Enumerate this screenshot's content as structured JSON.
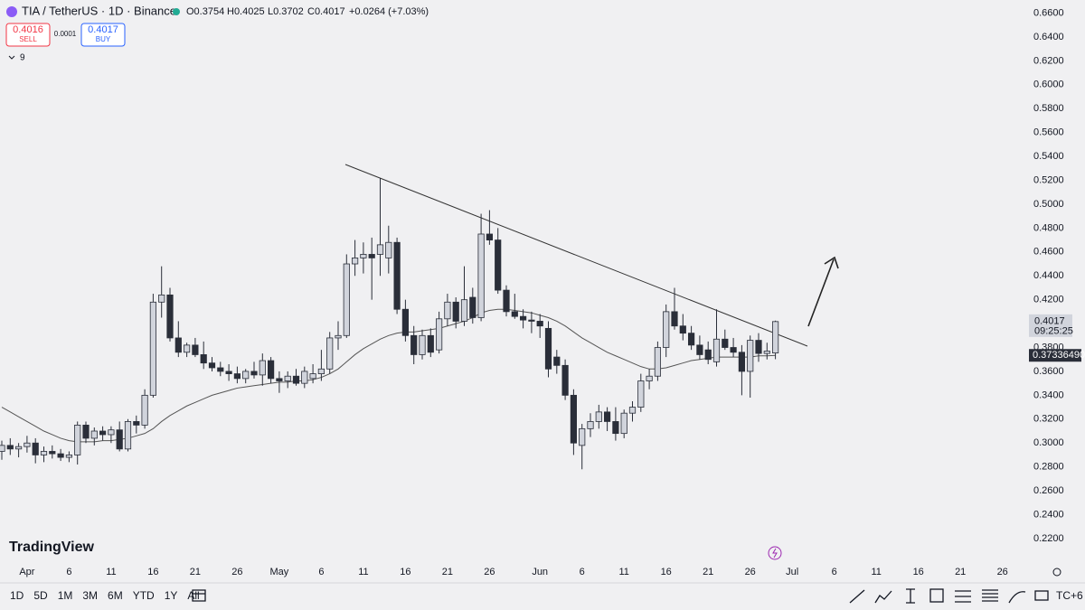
{
  "chart_data": {
    "type": "candlestick",
    "title": "TIA / TetherUS · 1D · Binance",
    "ohlc_header": {
      "open": "O0.3754",
      "high": "H0.4025",
      "low": "L0.3702",
      "close": "C0.4017",
      "change": "+0.0264 (+7.03%)"
    },
    "trade": {
      "sell_price": "0.4016",
      "sell": "SELL",
      "spread": "0.0001",
      "buy_price": "0.4017",
      "buy": "BUY",
      "indicators": "9"
    },
    "price_labels": {
      "last": "0.4017",
      "countdown": "09:25:25",
      "ma": "0.37336490"
    },
    "logo": "TradingView",
    "categories": [
      null,
      null,
      null,
      "Apr",
      null,
      null,
      null,
      null,
      "6",
      null,
      null,
      null,
      null,
      "11",
      null,
      null,
      null,
      null,
      "16",
      null,
      null,
      null,
      null,
      "21",
      null,
      null,
      null,
      null,
      "26",
      null,
      null,
      null,
      null,
      "May",
      null,
      null,
      null,
      null,
      "6",
      null,
      null,
      null,
      null,
      "11",
      null,
      null,
      null,
      null,
      "16",
      null,
      null,
      null,
      null,
      "21",
      null,
      null,
      null,
      null,
      "26",
      null,
      null,
      null,
      null,
      null,
      "Jun",
      null,
      null,
      null,
      null,
      "6",
      null,
      null,
      null,
      null,
      "11",
      null,
      null,
      null,
      null,
      "16",
      null,
      null,
      null,
      null,
      "21",
      null,
      null,
      null,
      null,
      "26",
      null,
      null,
      null,
      null,
      "Jul",
      null,
      null,
      null,
      null,
      "6",
      null,
      null,
      null,
      null,
      "11",
      null,
      null,
      null,
      null,
      "16",
      null,
      null,
      null,
      null,
      "21",
      null,
      null,
      null,
      null,
      "26",
      null
    ],
    "ohlc": [
      [
        0.293,
        0.302,
        0.286,
        0.298
      ],
      [
        0.298,
        0.304,
        0.29,
        0.295
      ],
      [
        0.295,
        0.3,
        0.288,
        0.297
      ],
      [
        0.297,
        0.306,
        0.292,
        0.3
      ],
      [
        0.3,
        0.304,
        0.283,
        0.29
      ],
      [
        0.29,
        0.297,
        0.284,
        0.293
      ],
      [
        0.293,
        0.298,
        0.287,
        0.291
      ],
      [
        0.291,
        0.295,
        0.285,
        0.288
      ],
      [
        0.288,
        0.293,
        0.284,
        0.29
      ],
      [
        0.29,
        0.318,
        0.282,
        0.315
      ],
      [
        0.315,
        0.318,
        0.3,
        0.304
      ],
      [
        0.304,
        0.313,
        0.298,
        0.31
      ],
      [
        0.31,
        0.314,
        0.302,
        0.307
      ],
      [
        0.307,
        0.314,
        0.3,
        0.311
      ],
      [
        0.311,
        0.318,
        0.293,
        0.295
      ],
      [
        0.295,
        0.32,
        0.293,
        0.318
      ],
      [
        0.318,
        0.323,
        0.308,
        0.315
      ],
      [
        0.315,
        0.345,
        0.312,
        0.34
      ],
      [
        0.34,
        0.425,
        0.338,
        0.418
      ],
      [
        0.418,
        0.448,
        0.405,
        0.424
      ],
      [
        0.424,
        0.43,
        0.385,
        0.388
      ],
      [
        0.388,
        0.402,
        0.372,
        0.376
      ],
      [
        0.376,
        0.384,
        0.372,
        0.382
      ],
      [
        0.382,
        0.388,
        0.372,
        0.374
      ],
      [
        0.374,
        0.385,
        0.362,
        0.367
      ],
      [
        0.367,
        0.372,
        0.36,
        0.363
      ],
      [
        0.363,
        0.368,
        0.356,
        0.36
      ],
      [
        0.36,
        0.366,
        0.352,
        0.358
      ],
      [
        0.358,
        0.364,
        0.35,
        0.354
      ],
      [
        0.354,
        0.362,
        0.35,
        0.36
      ],
      [
        0.36,
        0.368,
        0.354,
        0.357
      ],
      [
        0.357,
        0.375,
        0.348,
        0.369
      ],
      [
        0.369,
        0.372,
        0.35,
        0.354
      ],
      [
        0.354,
        0.36,
        0.342,
        0.352
      ],
      [
        0.352,
        0.36,
        0.346,
        0.356
      ],
      [
        0.356,
        0.362,
        0.348,
        0.35
      ],
      [
        0.35,
        0.364,
        0.346,
        0.36
      ],
      [
        0.354,
        0.366,
        0.35,
        0.358
      ],
      [
        0.358,
        0.378,
        0.352,
        0.362
      ],
      [
        0.362,
        0.393,
        0.358,
        0.388
      ],
      [
        0.388,
        0.402,
        0.378,
        0.39
      ],
      [
        0.39,
        0.458,
        0.388,
        0.45
      ],
      [
        0.45,
        0.47,
        0.44,
        0.455
      ],
      [
        0.455,
        0.468,
        0.442,
        0.458
      ],
      [
        0.458,
        0.472,
        0.42,
        0.455
      ],
      [
        0.458,
        0.522,
        0.44,
        0.466
      ],
      [
        0.455,
        0.482,
        0.442,
        0.468
      ],
      [
        0.468,
        0.472,
        0.408,
        0.412
      ],
      [
        0.412,
        0.42,
        0.385,
        0.39
      ],
      [
        0.39,
        0.398,
        0.366,
        0.374
      ],
      [
        0.374,
        0.395,
        0.37,
        0.39
      ],
      [
        0.39,
        0.396,
        0.372,
        0.376
      ],
      [
        0.378,
        0.41,
        0.375,
        0.404
      ],
      [
        0.404,
        0.425,
        0.398,
        0.418
      ],
      [
        0.418,
        0.422,
        0.396,
        0.402
      ],
      [
        0.402,
        0.448,
        0.398,
        0.42
      ],
      [
        0.422,
        0.43,
        0.4,
        0.405
      ],
      [
        0.405,
        0.492,
        0.402,
        0.475
      ],
      [
        0.475,
        0.495,
        0.466,
        0.47
      ],
      [
        0.47,
        0.48,
        0.425,
        0.428
      ],
      [
        0.428,
        0.432,
        0.406,
        0.41
      ],
      [
        0.41,
        0.425,
        0.404,
        0.406
      ],
      [
        0.406,
        0.412,
        0.396,
        0.403
      ],
      [
        0.403,
        0.41,
        0.392,
        0.402
      ],
      [
        0.402,
        0.408,
        0.388,
        0.398
      ],
      [
        0.396,
        0.402,
        0.355,
        0.362
      ],
      [
        0.372,
        0.378,
        0.358,
        0.365
      ],
      [
        0.365,
        0.37,
        0.336,
        0.34
      ],
      [
        0.34,
        0.345,
        0.29,
        0.3
      ],
      [
        0.298,
        0.316,
        0.278,
        0.312
      ],
      [
        0.312,
        0.325,
        0.305,
        0.318
      ],
      [
        0.318,
        0.332,
        0.312,
        0.326
      ],
      [
        0.326,
        0.33,
        0.31,
        0.318
      ],
      [
        0.318,
        0.33,
        0.302,
        0.308
      ],
      [
        0.308,
        0.328,
        0.304,
        0.325
      ],
      [
        0.325,
        0.335,
        0.318,
        0.33
      ],
      [
        0.33,
        0.358,
        0.326,
        0.352
      ],
      [
        0.352,
        0.362,
        0.345,
        0.356
      ],
      [
        0.356,
        0.385,
        0.352,
        0.38
      ],
      [
        0.38,
        0.416,
        0.372,
        0.41
      ],
      [
        0.41,
        0.43,
        0.395,
        0.398
      ],
      [
        0.398,
        0.408,
        0.386,
        0.392
      ],
      [
        0.392,
        0.398,
        0.378,
        0.382
      ],
      [
        0.382,
        0.39,
        0.37,
        0.374
      ],
      [
        0.378,
        0.385,
        0.366,
        0.37
      ],
      [
        0.368,
        0.412,
        0.364,
        0.387
      ],
      [
        0.387,
        0.395,
        0.378,
        0.38
      ],
      [
        0.38,
        0.388,
        0.372,
        0.376
      ],
      [
        0.376,
        0.382,
        0.34,
        0.36
      ],
      [
        0.36,
        0.39,
        0.338,
        0.386
      ],
      [
        0.386,
        0.392,
        0.368,
        0.375
      ],
      [
        0.375,
        0.384,
        0.37,
        0.377
      ],
      [
        0.3754,
        0.4025,
        0.3702,
        0.4017
      ],
      null,
      null,
      null,
      null,
      null,
      null,
      null,
      null,
      null,
      null,
      null,
      null,
      null,
      null,
      null,
      null,
      null,
      null,
      null,
      null,
      null,
      null,
      null,
      null,
      null,
      null,
      null,
      null
    ],
    "ma": [
      0.33,
      0.326,
      0.322,
      0.318,
      0.314,
      0.31,
      0.307,
      0.304,
      0.302,
      0.301,
      0.301,
      0.301,
      0.302,
      0.302,
      0.303,
      0.304,
      0.306,
      0.308,
      0.312,
      0.318,
      0.323,
      0.327,
      0.331,
      0.334,
      0.337,
      0.34,
      0.342,
      0.344,
      0.346,
      0.347,
      0.348,
      0.349,
      0.35,
      0.351,
      0.351,
      0.352,
      0.352,
      0.353,
      0.355,
      0.358,
      0.362,
      0.368,
      0.374,
      0.379,
      0.383,
      0.387,
      0.39,
      0.392,
      0.393,
      0.393,
      0.394,
      0.395,
      0.396,
      0.398,
      0.4,
      0.402,
      0.405,
      0.409,
      0.411,
      0.412,
      0.412,
      0.411,
      0.41,
      0.409,
      0.407,
      0.405,
      0.402,
      0.398,
      0.393,
      0.388,
      0.384,
      0.38,
      0.376,
      0.373,
      0.37,
      0.367,
      0.364,
      0.362,
      0.362,
      0.363,
      0.365,
      0.367,
      0.369,
      0.37,
      0.371,
      0.372,
      0.372,
      0.372,
      0.372,
      0.372,
      0.373,
      0.373,
      0.3734,
      null,
      null,
      null,
      null,
      null,
      null,
      null,
      null,
      null,
      null,
      null,
      null,
      null,
      null,
      null,
      null,
      null,
      null,
      null,
      null,
      null,
      null,
      null,
      null,
      null,
      null,
      null,
      null
    ],
    "up_color": "#d1d4dc",
    "down_color": "#2a2e39",
    "ma_color": "#555555",
    "ylim": [
      0.198,
      0.671
    ],
    "yticks": [
      {
        "value": 0.22,
        "label": "0.2200"
      },
      {
        "value": 0.24,
        "label": "0.2400"
      },
      {
        "value": 0.26,
        "label": "0.2600"
      },
      {
        "value": 0.28,
        "label": "0.2800"
      },
      {
        "value": 0.3,
        "label": "0.3000"
      },
      {
        "value": 0.32,
        "label": "0.3200"
      },
      {
        "value": 0.34,
        "label": "0.3400"
      },
      {
        "value": 0.36,
        "label": "0.3600"
      },
      {
        "value": 0.38,
        "label": "0.3800"
      },
      {
        "value": 0.4,
        "label": "0.4000"
      },
      {
        "value": 0.42,
        "label": "0.4200"
      },
      {
        "value": 0.44,
        "label": "0.4400"
      },
      {
        "value": 0.46,
        "label": "0.4600"
      },
      {
        "value": 0.48,
        "label": "0.4800"
      },
      {
        "value": 0.5,
        "label": "0.5000"
      },
      {
        "value": 0.52,
        "label": "0.5200"
      },
      {
        "value": 0.54,
        "label": "0.5400"
      },
      {
        "value": 0.56,
        "label": "0.5600"
      },
      {
        "value": 0.58,
        "label": "0.5800"
      },
      {
        "value": 0.6,
        "label": "0.6000"
      },
      {
        "value": 0.62,
        "label": "0.6200"
      },
      {
        "value": 0.64,
        "label": "0.6400"
      },
      {
        "value": 0.66,
        "label": "0.6600"
      }
    ],
    "grid": false
  },
  "toolbar": {
    "ranges": [
      "1D",
      "5D",
      "1M",
      "3M",
      "6M",
      "YTD",
      "1Y",
      "All"
    ],
    "timezone": "TC+6"
  }
}
